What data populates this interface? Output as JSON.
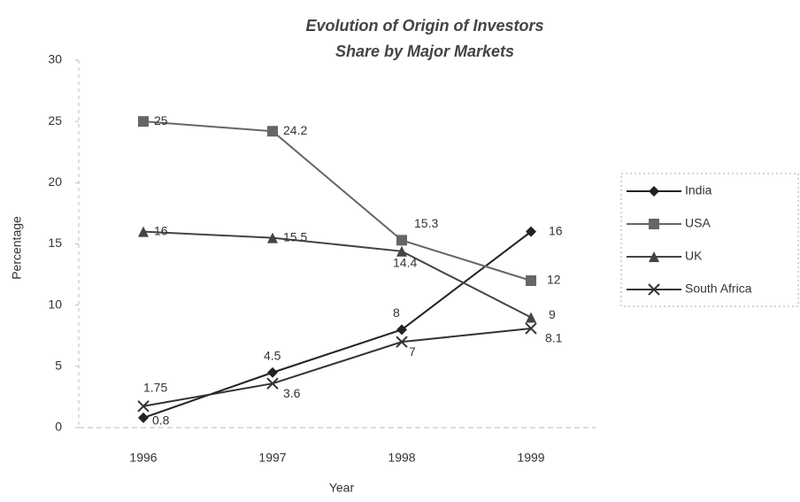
{
  "chart_data": {
    "type": "line",
    "title": "Evolution of Origin of Investors",
    "subtitle": "Share by Major Markets",
    "x_label": "Year",
    "y_label": "Percentage",
    "categories": [
      "1996",
      "1997",
      "1998",
      "1999"
    ],
    "series": [
      {
        "name": "India",
        "color": "#222222",
        "marker": "diamond",
        "values": [
          0.8,
          4.5,
          8,
          16
        ]
      },
      {
        "name": "USA",
        "color": "#666666",
        "marker": "square",
        "values": [
          25,
          24.2,
          15.3,
          12
        ]
      },
      {
        "name": "UK",
        "color": "#444444",
        "marker": "triangle",
        "values": [
          16,
          15.5,
          14.4,
          9
        ]
      },
      {
        "name": "South Africa",
        "color": "#333333",
        "marker": "x",
        "values": [
          1.75,
          3.6,
          7,
          8.1
        ]
      }
    ],
    "ylim": [
      0,
      30
    ],
    "yticks": [
      0,
      5,
      10,
      15,
      20,
      25,
      30
    ],
    "grid": false,
    "legend": "right"
  }
}
